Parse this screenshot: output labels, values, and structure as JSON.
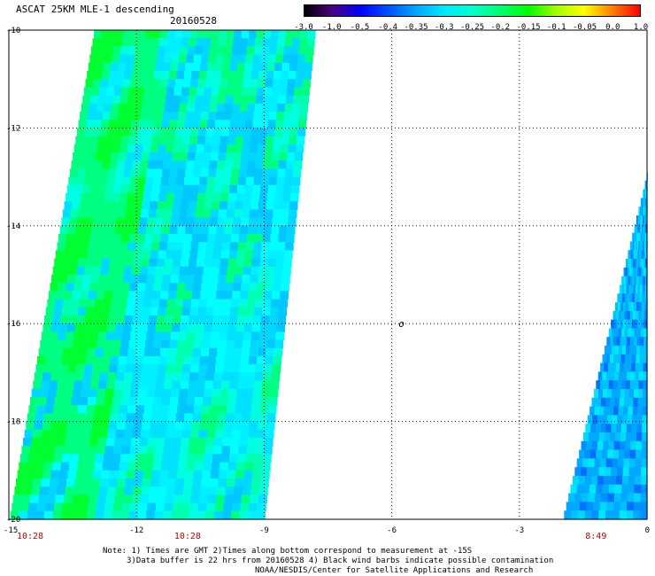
{
  "header": {
    "title": "ASCAT 25KM MLE-1 descending",
    "date": "20160528"
  },
  "colorbar": {
    "labels": [
      "-3.0",
      "-1.0",
      "-0.5",
      "-0.4",
      "-0.35",
      "-0.3",
      "-0.25",
      "-0.2",
      "-0.15",
      "-0.1",
      "-0.05",
      "0.0",
      "1.0"
    ],
    "colors": [
      "#000000",
      "#4b0082",
      "#0000ff",
      "#0050ff",
      "#00a8ff",
      "#00e8ff",
      "#00ffd0",
      "#00ff70",
      "#00ff00",
      "#a0ff00",
      "#ffff00",
      "#ff8000",
      "#ff0000"
    ]
  },
  "chart_data": {
    "type": "heatmap",
    "title": "ASCAT 25KM MLE-1 descending",
    "subtitle": "20160528",
    "xlim": [
      -15,
      0
    ],
    "ylim": [
      -20,
      -10
    ],
    "x_ticks": [
      "-15",
      "-12",
      "-9",
      "-6",
      "-3",
      "0"
    ],
    "y_ticks": [
      "-10",
      "-12",
      "-14",
      "-16",
      "-18",
      "-20"
    ],
    "grid": true,
    "swaths": [
      {
        "top_left": [
          -13.0,
          -10
        ],
        "top_right": [
          -7.8,
          -10
        ],
        "bottom_right": [
          -9.0,
          -20
        ],
        "bottom_left": [
          -15.0,
          -20
        ],
        "dominant_value_range": "-0.3 to -0.2"
      },
      {
        "top_right": [
          0,
          -12.9
        ],
        "bottom_right": [
          0,
          -20
        ],
        "bottom_left": [
          -2.0,
          -20
        ],
        "dominant_value_range": "-0.4 to -0.3"
      }
    ],
    "marker": {
      "x": -6.0,
      "y": -16.0,
      "label": "o"
    },
    "times": [
      {
        "label": "10:28",
        "x": -14.5
      },
      {
        "label": "10:28",
        "x": -10.8
      },
      {
        "label": "8:49",
        "x": -1.2
      }
    ]
  },
  "notes": {
    "line1": "Note: 1) Times are GMT 2)Times along bottom correspond to measurement at -15S",
    "line2": "3)Data buffer is 22 hrs from 20160528 4) Black wind barbs indicate possible contamination",
    "line3": "NOAA/NESDIS/Center for Satellite Applications and Research"
  }
}
